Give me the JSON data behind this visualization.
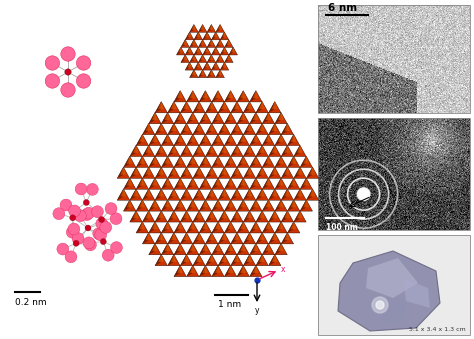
{
  "bg_color": "#ffffff",
  "scale_bar_0p2nm": "0.2 nm",
  "scale_bar_1nm": "1 nm",
  "scale_bar_6nm": "6 nm",
  "scale_bar_100nm": "100 nm",
  "size_label": "5.1 x 3.4 x 1.3 cm",
  "iron_color": "#cc0022",
  "oxygen_color": "#ff6699",
  "nano_base": "#aa2800",
  "nano_face": "#cc3300",
  "nano_highlight": "#dd5500",
  "nano_dark": "#1a0800",
  "nano_shadow": "#330800"
}
